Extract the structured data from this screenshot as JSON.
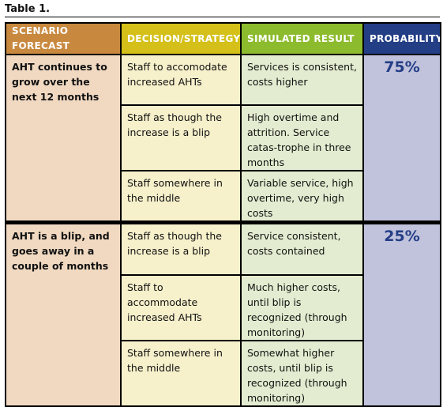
{
  "caption": "Table 1.",
  "headers": [
    "SCENARIO FORECAST",
    "DECISION/STRATEGY",
    "SIMULATED RESULT",
    "PROBABILITY"
  ],
  "scenarios": [
    {
      "forecast": "AHT continues to grow over the next 12 months",
      "probability": "75%",
      "rows": [
        {
          "strategy": "Staff to accomodate increased AHTs",
          "result": "Services is consistent, costs higher"
        },
        {
          "strategy": "Staff as though the increase is a blip",
          "result": "High overtime and attrition. Service catas-trophe in three months"
        },
        {
          "strategy": "Staff somewhere in the middle",
          "result": "Variable service, high overtime, very high costs"
        }
      ]
    },
    {
      "forecast": "AHT is a blip, and goes away in a couple of months",
      "probability": "25%",
      "rows": [
        {
          "strategy": "Staff as though the increase is a blip",
          "result": "Service consistent, costs contained"
        },
        {
          "strategy": "Staff to accommodate increased AHTs",
          "result": "Much higher costs, until blip is recognized (through monitoring)"
        },
        {
          "strategy": "Staff somewhere in the middle",
          "result": "Somewhat higher costs, until blip is recognized (through monitoring)"
        }
      ]
    }
  ]
}
